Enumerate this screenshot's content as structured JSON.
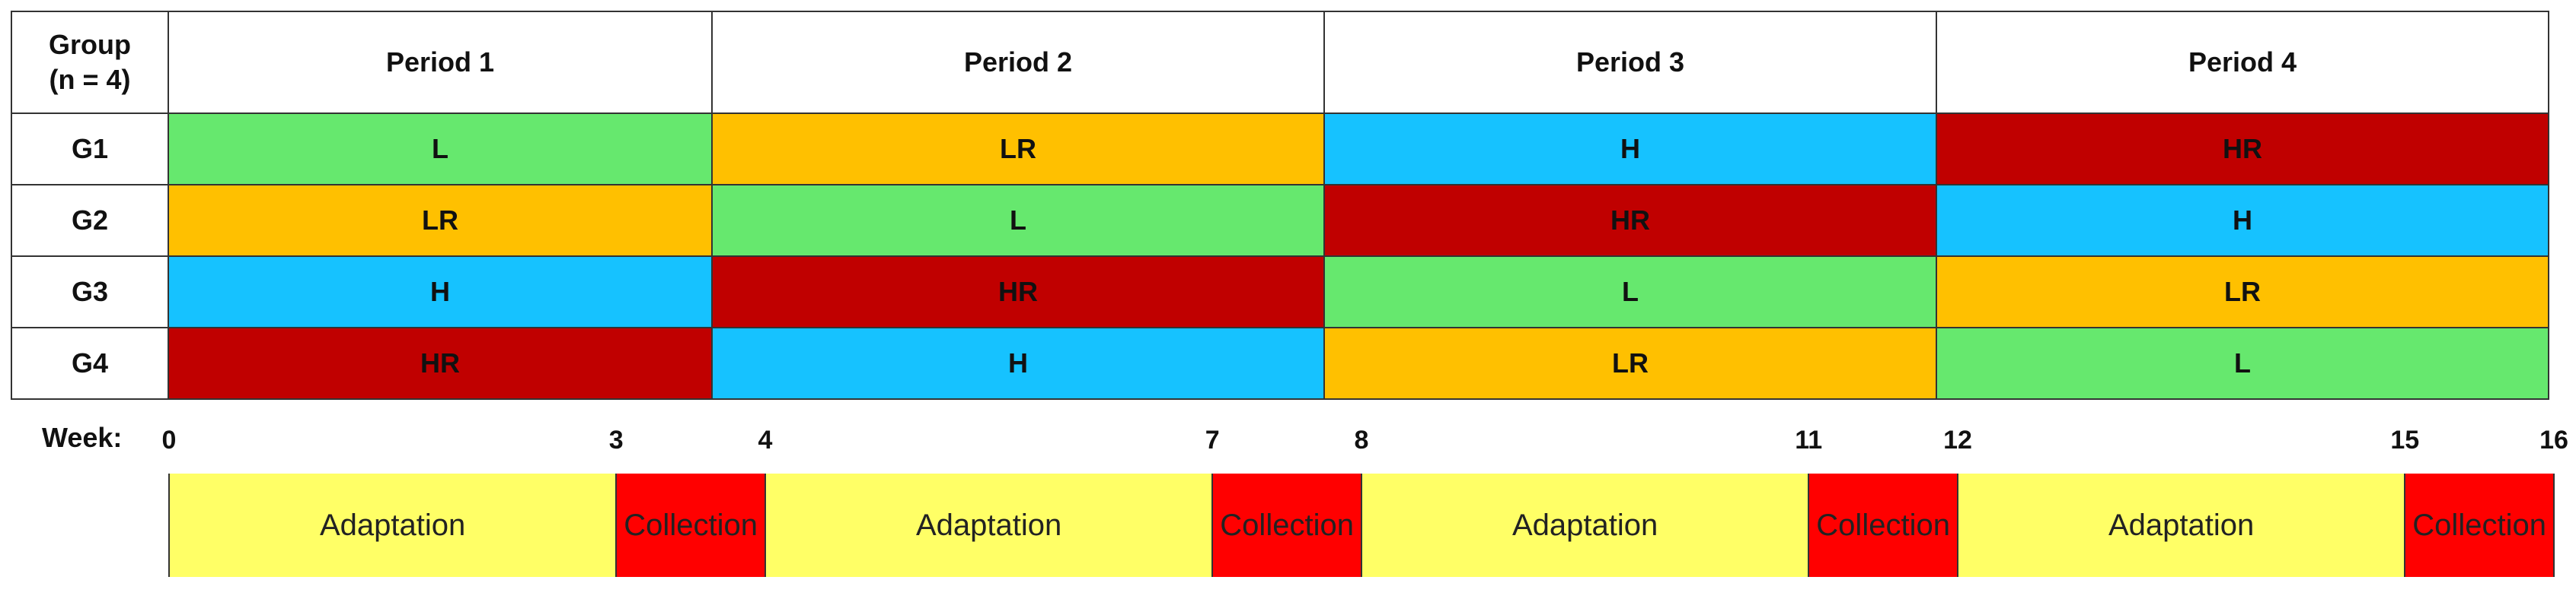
{
  "colors": {
    "L": "#66e86e",
    "LR": "#ffc000",
    "H": "#16c2ff",
    "HR": "#c00000",
    "adaptation": "#ffff66",
    "collection": "#ff0000"
  },
  "header": {
    "group_label_line1": "Group",
    "group_label_line2": "(n = 4)",
    "periods": [
      "Period 1",
      "Period 2",
      "Period 3",
      "Period 4"
    ]
  },
  "groups": [
    {
      "name": "G1",
      "cells": [
        "L",
        "LR",
        "H",
        "HR"
      ]
    },
    {
      "name": "G2",
      "cells": [
        "LR",
        "L",
        "HR",
        "H"
      ]
    },
    {
      "name": "G3",
      "cells": [
        "H",
        "HR",
        "L",
        "LR"
      ]
    },
    {
      "name": "G4",
      "cells": [
        "HR",
        "H",
        "LR",
        "L"
      ]
    }
  ],
  "timeline": {
    "week_label": "Week:",
    "ticks": [
      "0",
      "3",
      "4",
      "7",
      "8",
      "11",
      "12",
      "15",
      "16"
    ],
    "segments": [
      {
        "label": "Adaptation",
        "type": "adaptation",
        "start": 0,
        "end": 3
      },
      {
        "label": "Collection",
        "type": "collection",
        "start": 3,
        "end": 4
      },
      {
        "label": "Adaptation",
        "type": "adaptation",
        "start": 4,
        "end": 7
      },
      {
        "label": "Collection",
        "type": "collection",
        "start": 7,
        "end": 8
      },
      {
        "label": "Adaptation",
        "type": "adaptation",
        "start": 8,
        "end": 11
      },
      {
        "label": "Collection",
        "type": "collection",
        "start": 11,
        "end": 12
      },
      {
        "label": "Adaptation",
        "type": "adaptation",
        "start": 12,
        "end": 15
      },
      {
        "label": "Collection",
        "type": "collection",
        "start": 15,
        "end": 16
      }
    ]
  }
}
